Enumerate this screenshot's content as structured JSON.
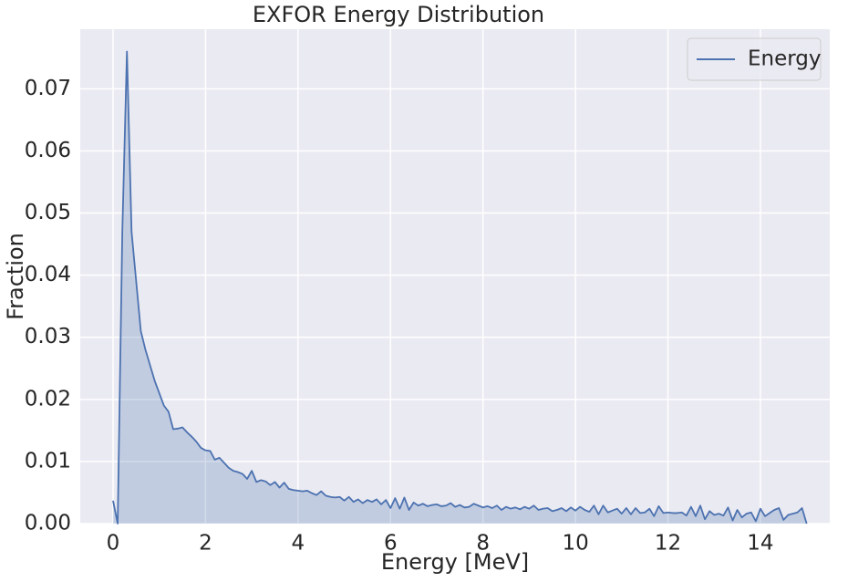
{
  "chart_data": {
    "type": "area",
    "title": "EXFOR Energy Distribution",
    "xlabel": "Energy [MeV]",
    "ylabel": "Fraction",
    "x": [
      0,
      0.1,
      0.2,
      0.3,
      0.4,
      0.5,
      0.6,
      0.7,
      0.8,
      0.9,
      1,
      1.1,
      1.2,
      1.3,
      1.4,
      1.5,
      1.6,
      1.7,
      1.8,
      1.9,
      2,
      2.1,
      2.2,
      2.3,
      2.4,
      2.5,
      2.6,
      2.7,
      2.8,
      2.9,
      3,
      3.1,
      3.2,
      3.3,
      3.4,
      3.5,
      3.6,
      3.7,
      3.8,
      3.9,
      4,
      4.1,
      4.2,
      4.3,
      4.4,
      4.5,
      4.6,
      4.7,
      4.8,
      4.9,
      5,
      5.1,
      5.2,
      5.3,
      5.4,
      5.5,
      5.6,
      5.7,
      5.8,
      5.9,
      6,
      6.1,
      6.2,
      6.3,
      6.4,
      6.5,
      6.6,
      6.7,
      6.8,
      6.9,
      7,
      7.1,
      7.2,
      7.3,
      7.4,
      7.5,
      7.6,
      7.7,
      7.8,
      7.9,
      8,
      8.1,
      8.2,
      8.3,
      8.4,
      8.5,
      8.6,
      8.7,
      8.8,
      8.9,
      9,
      9.1,
      9.2,
      9.3,
      9.4,
      9.5,
      9.6,
      9.7,
      9.8,
      9.9,
      10,
      10.1,
      10.2,
      10.3,
      10.4,
      10.5,
      10.6,
      10.7,
      10.8,
      10.9,
      11,
      11.1,
      11.2,
      11.3,
      11.4,
      11.5,
      11.6,
      11.7,
      11.8,
      11.9,
      12,
      12.1,
      12.2,
      12.3,
      12.4,
      12.5,
      12.6,
      12.7,
      12.8,
      12.9,
      13,
      13.1,
      13.2,
      13.3,
      13.4,
      13.5,
      13.6,
      13.7,
      13.8,
      13.9,
      14,
      14.1,
      14.2,
      14.3,
      14.4,
      14.5,
      14.6,
      14.7,
      14.8,
      14.9,
      15
    ],
    "series": [
      {
        "name": "Energy",
        "color": "#4c72b0",
        "values": [
          0.0037,
          0,
          0.047,
          0.076,
          0.047,
          0.039,
          0.031,
          0.028,
          0.0255,
          0.023,
          0.021,
          0.019,
          0.018,
          0.0152,
          0.0153,
          0.0155,
          0.0147,
          0.014,
          0.0132,
          0.0122,
          0.0118,
          0.0117,
          0.0103,
          0.0106,
          0.0098,
          0.009,
          0.0085,
          0.0083,
          0.008,
          0.0072,
          0.0085,
          0.0067,
          0.007,
          0.0068,
          0.0062,
          0.0067,
          0.0058,
          0.0066,
          0.0056,
          0.0054,
          0.0053,
          0.0052,
          0.0053,
          0.0049,
          0.0046,
          0.0052,
          0.0045,
          0.0043,
          0.0042,
          0.0043,
          0.0037,
          0.0043,
          0.0035,
          0.0039,
          0.0033,
          0.0038,
          0.0035,
          0.0039,
          0.0031,
          0.0038,
          0.0025,
          0.0041,
          0.0024,
          0.0042,
          0.0022,
          0.0034,
          0.0029,
          0.0032,
          0.0028,
          0.003,
          0.0031,
          0.0028,
          0.0029,
          0.0033,
          0.0027,
          0.003,
          0.0026,
          0.0027,
          0.0032,
          0.0029,
          0.0026,
          0.0028,
          0.0025,
          0.0029,
          0.0022,
          0.0027,
          0.0024,
          0.0026,
          0.0023,
          0.0027,
          0.0024,
          0.0029,
          0.0022,
          0.0024,
          0.0025,
          0.002,
          0.0022,
          0.0025,
          0.002,
          0.0026,
          0.0021,
          0.0027,
          0.0022,
          0.0019,
          0.0029,
          0.0015,
          0.0029,
          0.0018,
          0.0021,
          0.0024,
          0.0016,
          0.0025,
          0.0015,
          0.0025,
          0.0017,
          0.0018,
          0.0024,
          0.0012,
          0.0028,
          0.0017,
          0.0018,
          0.0017,
          0.0017,
          0.0018,
          0.0013,
          0.0027,
          0.0012,
          0.0029,
          0.0007,
          0.002,
          0.0014,
          0.0016,
          0.0013,
          0.0026,
          0.0005,
          0.0022,
          0.001,
          0.0016,
          0.0018,
          0.0004,
          0.0024,
          0.0012,
          0.0017,
          0.0022,
          0.0025,
          0.0006,
          0.0014,
          0.0016,
          0.0018,
          0.0025,
          0
        ]
      }
    ],
    "xlim": [
      -0.71,
      15.5
    ],
    "xticks": [
      0,
      2,
      4,
      6,
      8,
      10,
      12,
      14
    ],
    "ylim": [
      0,
      0.0796
    ],
    "yticks": [
      {
        "value": 0,
        "label": "0.00"
      },
      {
        "value": 0.01,
        "label": "0.01"
      },
      {
        "value": 0.02,
        "label": "0.02"
      },
      {
        "value": 0.03,
        "label": "0.03"
      },
      {
        "value": 0.04,
        "label": "0.04"
      },
      {
        "value": 0.05,
        "label": "0.05"
      },
      {
        "value": 0.06,
        "label": "0.06"
      },
      {
        "value": 0.07,
        "label": "0.07"
      }
    ],
    "grid": true,
    "legend": "upper right"
  }
}
